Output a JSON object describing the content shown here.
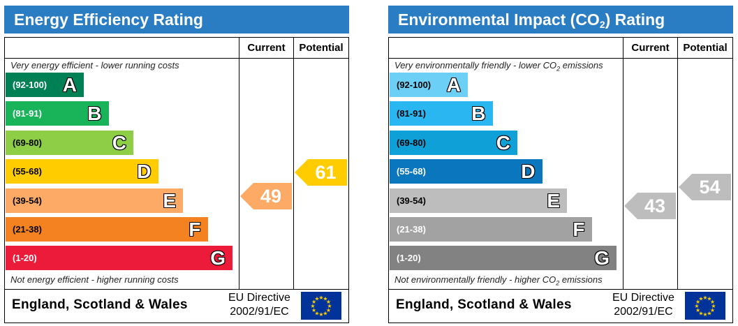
{
  "colors": {
    "title_bar": "#2a7dc2",
    "energy_bands": [
      "#008054",
      "#19b459",
      "#8dce46",
      "#ffcc00",
      "#fcaa65",
      "#f58220",
      "#ed1b3a"
    ],
    "co2_bands": [
      "#6ccff6",
      "#2ab6f1",
      "#0fa0d8",
      "#0a76bd",
      "#bdbdbd",
      "#a2a2a2",
      "#828282"
    ],
    "energy_current_arrow": "#fcaa65",
    "energy_potential_arrow": "#ffcc00",
    "co2_current_arrow": "#bdbdbd",
    "co2_potential_arrow": "#bdbdbd",
    "eu_flag": "#003399",
    "eu_stars": "#ffcc00"
  },
  "energy": {
    "title": "Energy Efficiency Rating",
    "col_current": "Current",
    "col_potential": "Potential",
    "top_note": "Very energy efficient - lower running costs",
    "bottom_note": "Not energy efficient - higher running costs",
    "bands": [
      {
        "range": "(92-100)",
        "letter": "A"
      },
      {
        "range": "(81-91)",
        "letter": "B"
      },
      {
        "range": "(69-80)",
        "letter": "C"
      },
      {
        "range": "(55-68)",
        "letter": "D"
      },
      {
        "range": "(39-54)",
        "letter": "E"
      },
      {
        "range": "(21-38)",
        "letter": "F"
      },
      {
        "range": "(1-20)",
        "letter": "G"
      }
    ],
    "current": "49",
    "potential": "61",
    "footer_region": "England, Scotland & Wales",
    "directive_line1": "EU Directive",
    "directive_line2": "2002/91/EC"
  },
  "co2": {
    "title_pre": "Environmental Impact (CO",
    "title_sub": "2",
    "title_post": ") Rating",
    "col_current": "Current",
    "col_potential": "Potential",
    "top_note_pre": "Very environmentally friendly - lower CO",
    "top_note_sub": "2",
    "top_note_post": " emissions",
    "bottom_note_pre": "Not environmentally friendly - higher CO",
    "bottom_note_sub": "2",
    "bottom_note_post": " emissions",
    "bands": [
      {
        "range": "(92-100)",
        "letter": "A"
      },
      {
        "range": "(81-91)",
        "letter": "B"
      },
      {
        "range": "(69-80)",
        "letter": "C"
      },
      {
        "range": "(55-68)",
        "letter": "D"
      },
      {
        "range": "(39-54)",
        "letter": "E"
      },
      {
        "range": "(21-38)",
        "letter": "F"
      },
      {
        "range": "(1-20)",
        "letter": "G"
      }
    ],
    "current": "43",
    "potential": "54",
    "footer_region": "England, Scotland & Wales",
    "directive_line1": "EU Directive",
    "directive_line2": "2002/91/EC"
  },
  "chart_data": [
    {
      "type": "bar",
      "title": "Energy Efficiency Rating",
      "categories": [
        "A",
        "B",
        "C",
        "D",
        "E",
        "F",
        "G"
      ],
      "ranges": [
        "(92-100)",
        "(81-91)",
        "(69-80)",
        "(55-68)",
        "(39-54)",
        "(21-38)",
        "(1-20)"
      ],
      "current": 49,
      "potential": 61
    },
    {
      "type": "bar",
      "title": "Environmental Impact (CO2) Rating",
      "categories": [
        "A",
        "B",
        "C",
        "D",
        "E",
        "F",
        "G"
      ],
      "ranges": [
        "(92-100)",
        "(81-91)",
        "(69-80)",
        "(55-68)",
        "(39-54)",
        "(21-38)",
        "(1-20)"
      ],
      "current": 43,
      "potential": 54
    }
  ]
}
